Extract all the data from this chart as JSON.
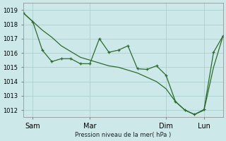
{
  "bg_color": "#cce8e8",
  "grid_color": "#aad0d0",
  "line_color": "#2d6b2d",
  "ylabel": "Pression niveau de la mer( hPa )",
  "ylim": [
    1011.5,
    1019.5
  ],
  "yticks": [
    1012,
    1013,
    1014,
    1015,
    1016,
    1017,
    1018,
    1019
  ],
  "line_straight_x": [
    0,
    1,
    2,
    3,
    4,
    5,
    6,
    7,
    8,
    9,
    10,
    11,
    12,
    13,
    14,
    15,
    16,
    17,
    18,
    19,
    20,
    21
  ],
  "line_straight_y": [
    1018.8,
    1018.2,
    1017.6,
    1017.1,
    1016.5,
    1016.1,
    1015.7,
    1015.5,
    1015.3,
    1015.1,
    1015.0,
    1014.8,
    1014.6,
    1014.3,
    1014.0,
    1013.5,
    1012.6,
    1012.0,
    1011.7,
    1012.0,
    1015.0,
    1017.2
  ],
  "line_jagged_x": [
    0,
    1,
    2,
    3,
    4,
    5,
    6,
    7,
    8,
    9,
    10,
    11,
    12,
    13,
    14,
    15,
    16,
    17,
    18,
    19,
    20,
    21
  ],
  "line_jagged_y": [
    1018.8,
    1018.2,
    1016.2,
    1015.4,
    1015.6,
    1015.6,
    1015.25,
    1015.25,
    1017.0,
    1016.05,
    1016.2,
    1016.5,
    1014.9,
    1014.85,
    1015.1,
    1014.45,
    1012.6,
    1012.0,
    1011.7,
    1012.05,
    1016.05,
    1017.2
  ],
  "xtick_positions": [
    1,
    7,
    15,
    19
  ],
  "xtick_labels": [
    "Sam",
    "Mar",
    "Dim",
    "Lun"
  ],
  "xlim": [
    0,
    21
  ]
}
